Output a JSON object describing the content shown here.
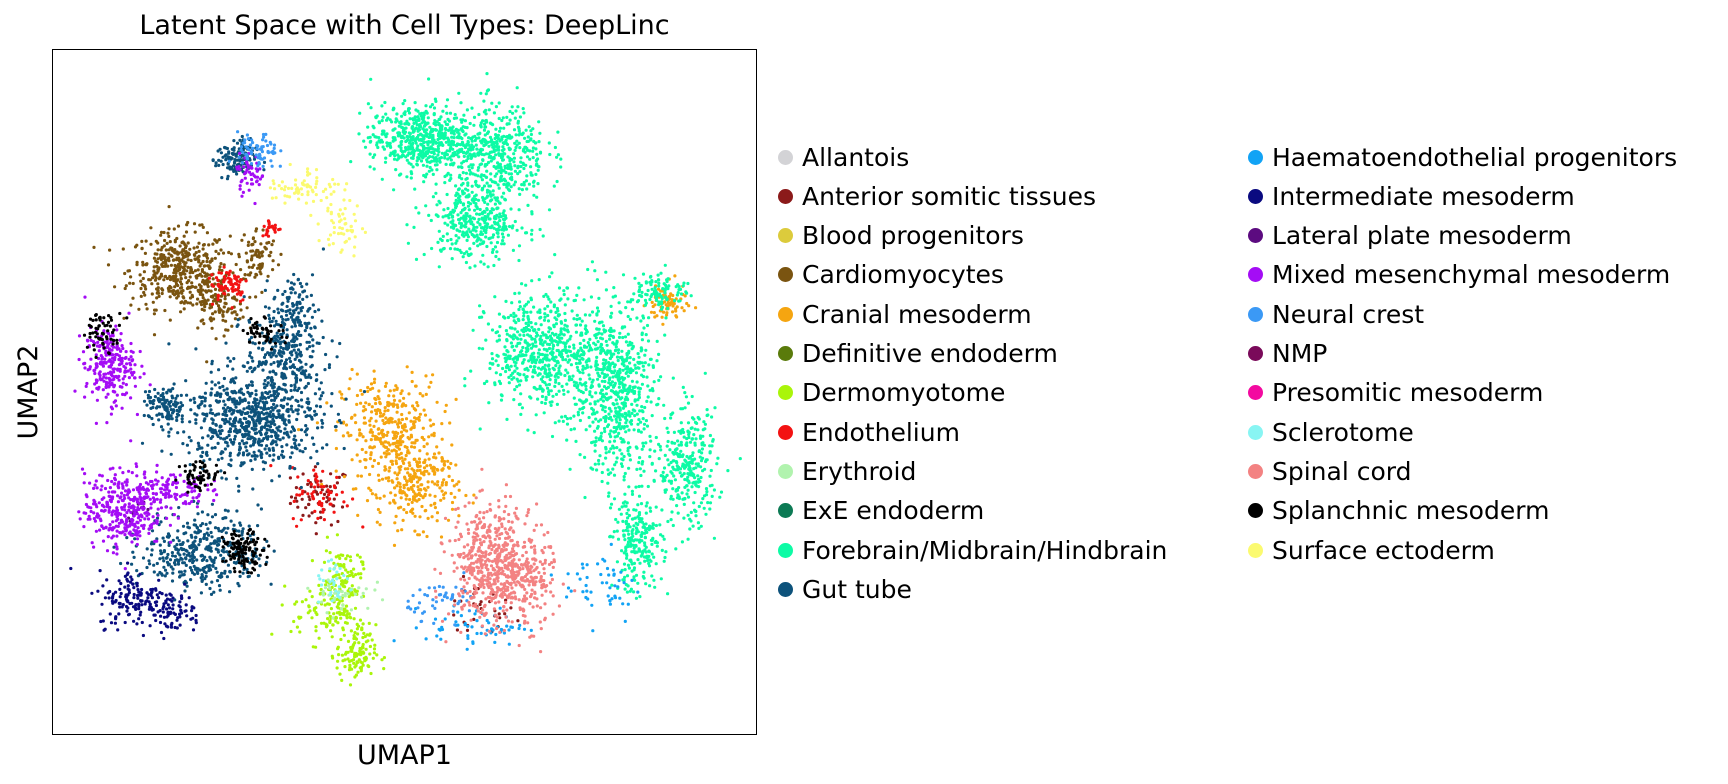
{
  "chart_data": {
    "type": "scatter",
    "title": "Latent Space with Cell Types: DeepLinc",
    "xlabel": "UMAP1",
    "ylabel": "UMAP2",
    "xlim": [
      0,
      100
    ],
    "ylim": [
      0,
      100
    ],
    "grid": false,
    "legend_position": "right",
    "legend_columns": 2,
    "series": [
      {
        "name": "Allantois",
        "color": "#d3d3d6",
        "clusters": []
      },
      {
        "name": "Anterior somitic tissues",
        "color": "#8b1a1a",
        "clusters": [
          [
            38,
            35,
            3,
            3,
            60
          ],
          [
            60,
            18,
            4,
            3,
            30
          ]
        ]
      },
      {
        "name": "Blood progenitors",
        "color": "#dccb3c",
        "clusters": []
      },
      {
        "name": "Cardiomyocytes",
        "color": "#7a5410",
        "clusters": [
          [
            18,
            68,
            5,
            4,
            420
          ],
          [
            23,
            63,
            3,
            3,
            120
          ],
          [
            29,
            70,
            2,
            3,
            80
          ]
        ]
      },
      {
        "name": "Cranial mesoderm",
        "color": "#f5a510",
        "clusters": [
          [
            48,
            44,
            5,
            6,
            380
          ],
          [
            52,
            36,
            4,
            4,
            200
          ],
          [
            87,
            63,
            2,
            2,
            80
          ]
        ]
      },
      {
        "name": "Definitive endoderm",
        "color": "#5a7b0b",
        "clusters": []
      },
      {
        "name": "Dermomyotome",
        "color": "#aaf50a",
        "clusters": [
          [
            41,
            22,
            2,
            4,
            130
          ],
          [
            43,
            12,
            2,
            3,
            120
          ],
          [
            38,
            18,
            3,
            3,
            70
          ]
        ]
      },
      {
        "name": "Endothelium",
        "color": "#f31212",
        "clusters": [
          [
            25,
            66,
            2,
            2,
            70
          ],
          [
            38,
            35,
            3,
            3,
            60
          ],
          [
            31,
            74,
            1,
            1,
            25
          ]
        ]
      },
      {
        "name": "Erythroid",
        "color": "#b1f3ae",
        "clusters": [
          [
            41,
            21,
            3,
            2,
            40
          ]
        ]
      },
      {
        "name": "ExE endoderm",
        "color": "#0c7a54",
        "clusters": []
      },
      {
        "name": "Forebrain/Midbrain/Hindbrain",
        "color": "#0dfba5",
        "clusters": [
          [
            52,
            87,
            5,
            3.5,
            550
          ],
          [
            63,
            85,
            5,
            5,
            450
          ],
          [
            60,
            75,
            5,
            4,
            380
          ],
          [
            70,
            56,
            6,
            6,
            650
          ],
          [
            80,
            50,
            4,
            9,
            600
          ],
          [
            90,
            39,
            3,
            6,
            300
          ],
          [
            83,
            28,
            2.5,
            5,
            230
          ],
          [
            86,
            65,
            3,
            2,
            100
          ]
        ]
      },
      {
        "name": "Gut tube",
        "color": "#0d527b",
        "clusters": [
          [
            28,
            46,
            7,
            5,
            700
          ],
          [
            33,
            56,
            4,
            5,
            300
          ],
          [
            21,
            27,
            6,
            4,
            400
          ],
          [
            16,
            48,
            2,
            2,
            100
          ],
          [
            26,
            84,
            2,
            2,
            130
          ],
          [
            34,
            63,
            2,
            3,
            70
          ]
        ]
      },
      {
        "name": "Haematoendothelial progenitors",
        "color": "#12a3f5",
        "clusters": [
          [
            60,
            16,
            5,
            2,
            60
          ],
          [
            78,
            22,
            4,
            4,
            50
          ]
        ]
      },
      {
        "name": "Intermediate mesoderm",
        "color": "#0a0a80",
        "clusters": [
          [
            12,
            20,
            4,
            3,
            160
          ],
          [
            17,
            18,
            3,
            2,
            60
          ]
        ]
      },
      {
        "name": "Lateral plate mesoderm",
        "color": "#5c0b80",
        "clusters": [
          [
            12,
            33,
            1,
            1,
            15
          ]
        ]
      },
      {
        "name": "Mixed mesenchymal mesoderm",
        "color": "#a40df5",
        "clusters": [
          [
            8,
            54,
            2.5,
            4,
            250
          ],
          [
            10,
            33,
            4,
            4,
            320
          ],
          [
            16,
            36,
            4,
            2,
            120
          ],
          [
            28,
            82,
            1.5,
            2,
            50
          ]
        ]
      },
      {
        "name": "Neural crest",
        "color": "#3b99f5",
        "clusters": [
          [
            29,
            85,
            2,
            2,
            70
          ],
          [
            56,
            20,
            4,
            2,
            50
          ]
        ]
      },
      {
        "name": "NMP",
        "color": "#7a0a5a",
        "clusters": []
      },
      {
        "name": "Presomitic mesoderm",
        "color": "#f30aa0",
        "clusters": []
      },
      {
        "name": "Sclerotome",
        "color": "#88f5f3",
        "clusters": [
          [
            40,
            22,
            2,
            2,
            30
          ]
        ]
      },
      {
        "name": "Spinal cord",
        "color": "#f38282",
        "clusters": [
          [
            62,
            25,
            4,
            6,
            500
          ],
          [
            67,
            23,
            3,
            5,
            200
          ]
        ]
      },
      {
        "name": "Splanchnic mesoderm",
        "color": "#000000",
        "clusters": [
          [
            27,
            27,
            2,
            2,
            120
          ],
          [
            21,
            38,
            2,
            1.5,
            60
          ],
          [
            7,
            59,
            2,
            2,
            60
          ],
          [
            30,
            59,
            2,
            1.5,
            50
          ]
        ]
      },
      {
        "name": "Surface ectoderm",
        "color": "#fbfa70",
        "clusters": [
          [
            36,
            80,
            4,
            2,
            70
          ],
          [
            41,
            74,
            2,
            3,
            50
          ]
        ]
      }
    ]
  }
}
